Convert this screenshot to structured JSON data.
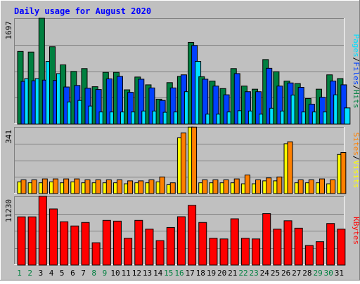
{
  "chart_data": [
    {
      "type": "bar",
      "title": "Daily usage for August 2020",
      "ymax_label": "1697",
      "series_labels": [
        "Hits",
        "Files",
        "Pages"
      ],
      "series_colors": {
        "Hits": "#008040",
        "Files": "#0040ff",
        "Pages": "#00e0ff"
      },
      "categories": [
        "1",
        "2",
        "3",
        "4",
        "5",
        "6",
        "7",
        "8",
        "9",
        "10",
        "11",
        "12",
        "13",
        "14",
        "15",
        "16",
        "17",
        "18",
        "19",
        "20",
        "21",
        "22",
        "23",
        "24",
        "25",
        "26",
        "27",
        "28",
        "29",
        "30",
        "31"
      ],
      "weekend_days": [
        "1",
        "2",
        "8",
        "9",
        "15",
        "16",
        "22",
        "23",
        "29",
        "30"
      ],
      "ylim": [
        0,
        1697
      ],
      "series": [
        {
          "name": "Hits",
          "values": [
            1165,
            1155,
            1697,
            1240,
            950,
            845,
            890,
            600,
            830,
            830,
            550,
            755,
            630,
            400,
            665,
            765,
            1310,
            760,
            690,
            570,
            890,
            610,
            560,
            1035,
            840,
            690,
            650,
            410,
            560,
            790,
            730
          ]
        },
        {
          "name": "Files",
          "values": [
            685,
            695,
            705,
            700,
            595,
            620,
            575,
            555,
            725,
            765,
            510,
            720,
            580,
            380,
            580,
            790,
            1260,
            720,
            610,
            470,
            810,
            520,
            520,
            895,
            610,
            660,
            590,
            320,
            430,
            690,
            630
          ]
        },
        {
          "name": "Pages",
          "values": [
            730,
            730,
            1005,
            810,
            355,
            380,
            290,
            195,
            195,
            195,
            195,
            210,
            210,
            190,
            195,
            520,
            1005,
            160,
            160,
            195,
            215,
            210,
            160,
            255,
            210,
            465,
            195,
            195,
            195,
            470,
            260
          ]
        }
      ]
    },
    {
      "type": "bar",
      "ymax_label": "341",
      "series_labels": [
        "Visits",
        "Sites"
      ],
      "series_colors": {
        "Visits": "#ffff00",
        "Sites": "#ff8000"
      },
      "ylim": [
        0,
        341
      ],
      "series": [
        {
          "name": "Visits",
          "values": [
            60,
            55,
            55,
            60,
            55,
            60,
            55,
            55,
            55,
            55,
            50,
            55,
            55,
            60,
            45,
            285,
            340,
            55,
            55,
            55,
            55,
            50,
            50,
            65,
            65,
            255,
            55,
            55,
            55,
            50,
            200
          ]
        },
        {
          "name": "Sites",
          "values": [
            70,
            70,
            75,
            75,
            75,
            75,
            70,
            70,
            70,
            70,
            65,
            65,
            70,
            85,
            55,
            310,
            340,
            70,
            70,
            70,
            75,
            95,
            70,
            80,
            85,
            265,
            70,
            70,
            75,
            70,
            210
          ]
        }
      ]
    },
    {
      "type": "bar",
      "ymax_label": "11230",
      "series_labels": [
        "KBytes"
      ],
      "series_colors": {
        "KBytes": "#ff0000"
      },
      "ylim": [
        0,
        11230
      ],
      "series": [
        {
          "name": "KBytes",
          "values": [
            7880,
            7880,
            11230,
            9170,
            7080,
            6390,
            6960,
            3650,
            7300,
            7180,
            4380,
            7300,
            5870,
            4000,
            6140,
            7900,
            9760,
            6960,
            4380,
            4270,
            7560,
            4380,
            4270,
            8410,
            5870,
            7240,
            6030,
            3200,
            3820,
            6790,
            5870
          ]
        }
      ]
    }
  ]
}
